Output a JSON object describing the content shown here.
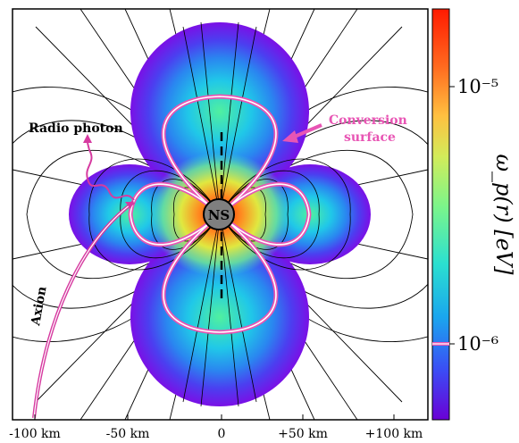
{
  "axis": {
    "x_ticks": [
      {
        "value": -100,
        "label": "-100 km"
      },
      {
        "value": -50,
        "label": "-50 km"
      },
      {
        "value": 0,
        "label": "0"
      },
      {
        "value": 50,
        "label": "+50 km"
      },
      {
        "value": 100,
        "label": "+100 km"
      }
    ]
  },
  "labels": {
    "ns": "NS",
    "radio_photon": "Radio photon",
    "axion": "Axion",
    "conversion_line1": "Conversion",
    "conversion_line2": "surface"
  },
  "colorbar": {
    "scale": "log",
    "title": "ω_p(r) [eV]",
    "ticks": [
      {
        "value": 1e-05,
        "label": "10⁻⁵"
      },
      {
        "value": 1e-06,
        "label": "10⁻⁶"
      }
    ],
    "colormap": "rainbow",
    "marker_value": 1e-06
  },
  "colors": {
    "conversion_surface": "#e855b4",
    "axion_line": "#d63aa0",
    "ns_fill": "#7f7f7f"
  }
}
